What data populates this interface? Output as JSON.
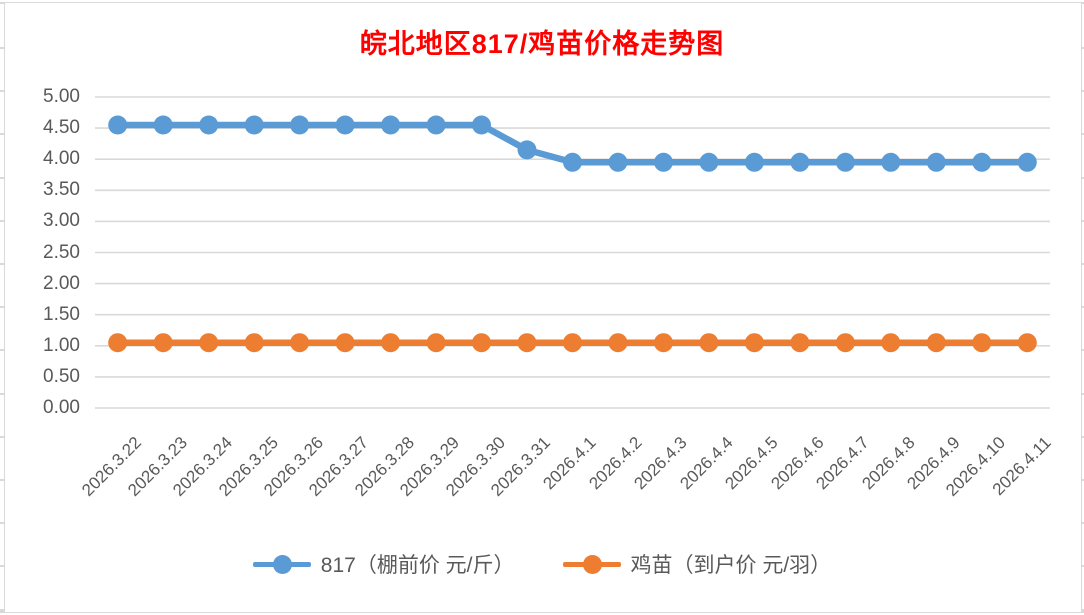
{
  "title": {
    "text": "皖北地区817/鸡苗价格走势图",
    "color": "#FF0000"
  },
  "chart_data": {
    "type": "line",
    "title": "皖北地区817/鸡苗价格走势图",
    "categories": [
      "2026.3.22",
      "2026.3.23",
      "2026.3.24",
      "2026.3.25",
      "2026.3.26",
      "2026.3.27",
      "2026.3.28",
      "2026.3.29",
      "2026.3.30",
      "2026.3.31",
      "2026.4.1",
      "2026.4.2",
      "2026.4.3",
      "2026.4.4",
      "2026.4.5",
      "2026.4.6",
      "2026.4.7",
      "2026.4.8",
      "2026.4.9",
      "2026.4.10",
      "2026.4.11"
    ],
    "series": [
      {
        "name": "817（棚前价 元/斤）",
        "color": "#5B9BD5",
        "values": [
          4.55,
          4.55,
          4.55,
          4.55,
          4.55,
          4.55,
          4.55,
          4.55,
          4.55,
          4.15,
          3.95,
          3.95,
          3.95,
          3.95,
          3.95,
          3.95,
          3.95,
          3.95,
          3.95,
          3.95,
          3.95
        ]
      },
      {
        "name": "鸡苗（到户价 元/羽）",
        "color": "#ED7D31",
        "values": [
          1.05,
          1.05,
          1.05,
          1.05,
          1.05,
          1.05,
          1.05,
          1.05,
          1.05,
          1.05,
          1.05,
          1.05,
          1.05,
          1.05,
          1.05,
          1.05,
          1.05,
          1.05,
          1.05,
          1.05,
          1.05
        ]
      }
    ],
    "ylim": [
      0,
      5
    ],
    "y_tick_step": 0.5,
    "y_tick_labels": [
      "0.00",
      "0.50",
      "1.00",
      "1.50",
      "2.00",
      "2.50",
      "3.00",
      "3.50",
      "4.00",
      "4.50",
      "5.00"
    ],
    "xlabel": "",
    "ylabel": "",
    "grid": true,
    "gridline_color": "#D9D9D9",
    "axis_label_color": "#595959",
    "legend_position": "bottom"
  }
}
